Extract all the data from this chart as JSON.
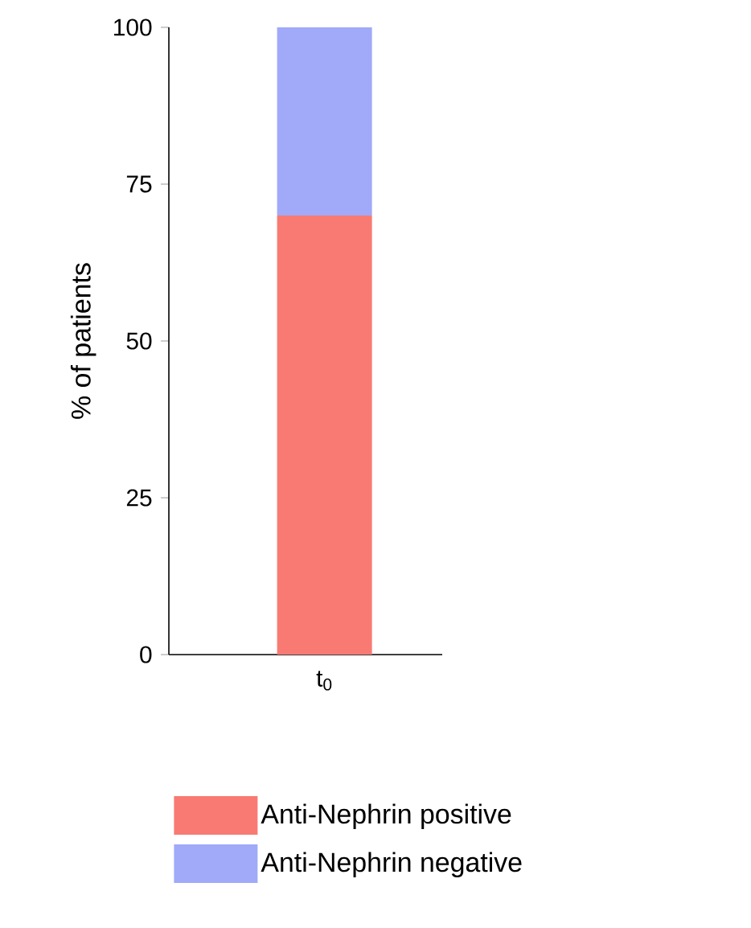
{
  "chart_data": {
    "type": "bar",
    "stacked": true,
    "ylabel": "% of patients",
    "categories": [
      "t$_{0}$"
    ],
    "series": [
      {
        "name": "Anti-Nephrin positive",
        "color": "#f87a73",
        "values": [
          70
        ]
      },
      {
        "name": "Anti-Nephrin negative",
        "color": "#a0aaf8",
        "values": [
          30
        ]
      }
    ],
    "ylim": [
      0,
      100
    ],
    "yticks": [
      0,
      25,
      50,
      75,
      100
    ],
    "legend": "bottom"
  }
}
